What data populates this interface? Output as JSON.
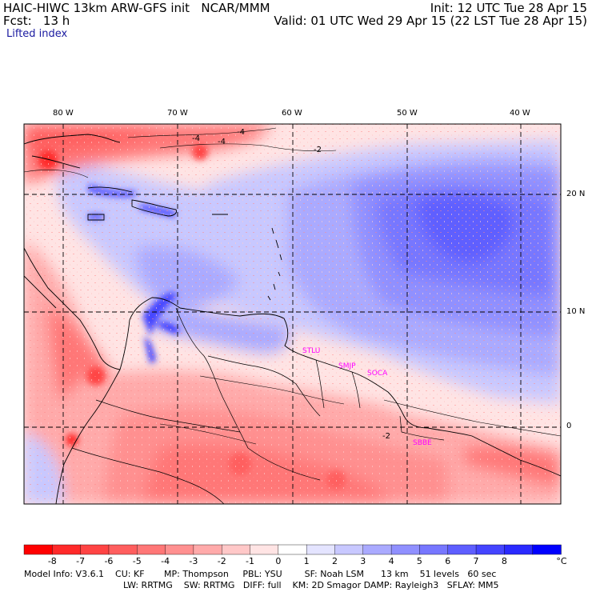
{
  "header": {
    "line1_left": "HAIC-HIWC 13km ARW-GFS init   NCAR/MMM",
    "line1_right": "Init: 12 UTC Tue 28 Apr 15",
    "line2_left": "Fcst:   13 h",
    "line2_right": "Valid: 01 UTC Wed 29 Apr 15 (22 LST Tue 28 Apr 15)",
    "field": "Lifted index"
  },
  "longitudes": [
    "80 W",
    "70 W",
    "60 W",
    "50 W",
    "40 W"
  ],
  "latitudes": [
    "20 N",
    "10 N",
    "0"
  ],
  "stations": [
    "STLU",
    "SMJP",
    "SOCA",
    "SBBE"
  ],
  "contour_labels": [
    "-4",
    "-4",
    "-4",
    "-2",
    "-2"
  ],
  "colorbar": {
    "ticks": [
      "-8",
      "-7",
      "-6",
      "-5",
      "-4",
      "-3",
      "-2",
      "-1",
      "0",
      "1",
      "2",
      "3",
      "4",
      "5",
      "6",
      "7",
      "8"
    ],
    "unit": "°C",
    "colors": [
      "#ff0000",
      "#ff2a2a",
      "#ff4444",
      "#ff5e5e",
      "#ff7777",
      "#ff9090",
      "#ffaaaa",
      "#ffc8c8",
      "#ffe4e4",
      "#ffffff",
      "#e4e4ff",
      "#c8c8ff",
      "#aaaaff",
      "#9090ff",
      "#7777ff",
      "#5e5eff",
      "#4444ff",
      "#2a2aff",
      "#0000ff"
    ]
  },
  "footer": {
    "line1": "Model Info: V3.6.1    CU: KF       MP: Thompson     PBL: YSU        SF: Noah LSM      13 km    51 levels   60 sec",
    "line2": "LW: RRTMG    SW: RRTMG   DIFF: full    KM: 2D Smagor DAMP: Rayleigh3   SFLAY: MM5"
  }
}
